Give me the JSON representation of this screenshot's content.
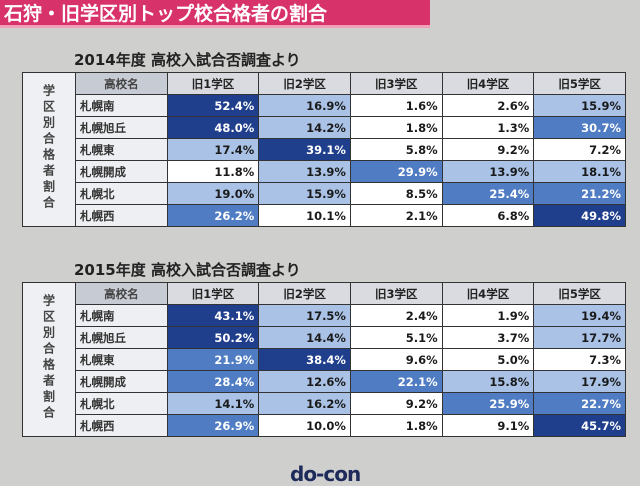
{
  "header": {
    "title": "石狩・旧学区別トップ校合格者の割合"
  },
  "tables": [
    {
      "caption": "2014年度 高校入試合否調査より",
      "side_label": "学区別合格者割合",
      "columns": [
        "高校名",
        "旧1学区",
        "旧2学区",
        "旧3学区",
        "旧4学区",
        "旧5学区"
      ],
      "rows": [
        {
          "name": "札幌南",
          "values": [
            "52.4%",
            "16.9%",
            "1.6%",
            "2.6%",
            "15.9%"
          ]
        },
        {
          "name": "札幌旭丘",
          "values": [
            "48.0%",
            "14.2%",
            "1.8%",
            "1.3%",
            "30.7%"
          ]
        },
        {
          "name": "札幌東",
          "values": [
            "17.4%",
            "39.1%",
            "5.8%",
            "9.2%",
            "7.2%"
          ]
        },
        {
          "name": "札幌開成",
          "values": [
            "11.8%",
            "13.9%",
            "29.9%",
            "13.9%",
            "18.1%"
          ]
        },
        {
          "name": "札幌北",
          "values": [
            "19.0%",
            "15.9%",
            "8.5%",
            "25.4%",
            "21.2%"
          ]
        },
        {
          "name": "札幌西",
          "values": [
            "26.2%",
            "10.1%",
            "2.1%",
            "6.8%",
            "49.8%"
          ]
        }
      ]
    },
    {
      "caption": "2015年度 高校入試合否調査より",
      "side_label": "学区別合格者割合",
      "columns": [
        "高校名",
        "旧1学区",
        "旧2学区",
        "旧3学区",
        "旧4学区",
        "旧5学区"
      ],
      "rows": [
        {
          "name": "札幌南",
          "values": [
            "43.1%",
            "17.5%",
            "2.4%",
            "1.9%",
            "19.4%"
          ]
        },
        {
          "name": "札幌旭丘",
          "values": [
            "50.2%",
            "14.4%",
            "5.1%",
            "3.7%",
            "17.7%"
          ]
        },
        {
          "name": "札幌東",
          "values": [
            "21.9%",
            "38.4%",
            "9.6%",
            "5.0%",
            "7.3%"
          ]
        },
        {
          "name": "札幌開成",
          "values": [
            "28.4%",
            "12.6%",
            "22.1%",
            "15.8%",
            "17.9%"
          ]
        },
        {
          "name": "札幌北",
          "values": [
            "14.1%",
            "16.2%",
            "9.2%",
            "25.9%",
            "22.7%"
          ]
        },
        {
          "name": "札幌西",
          "values": [
            "26.9%",
            "10.0%",
            "1.8%",
            "9.1%",
            "45.7%"
          ]
        }
      ]
    }
  ],
  "footer": {
    "logo": "do-con"
  }
}
